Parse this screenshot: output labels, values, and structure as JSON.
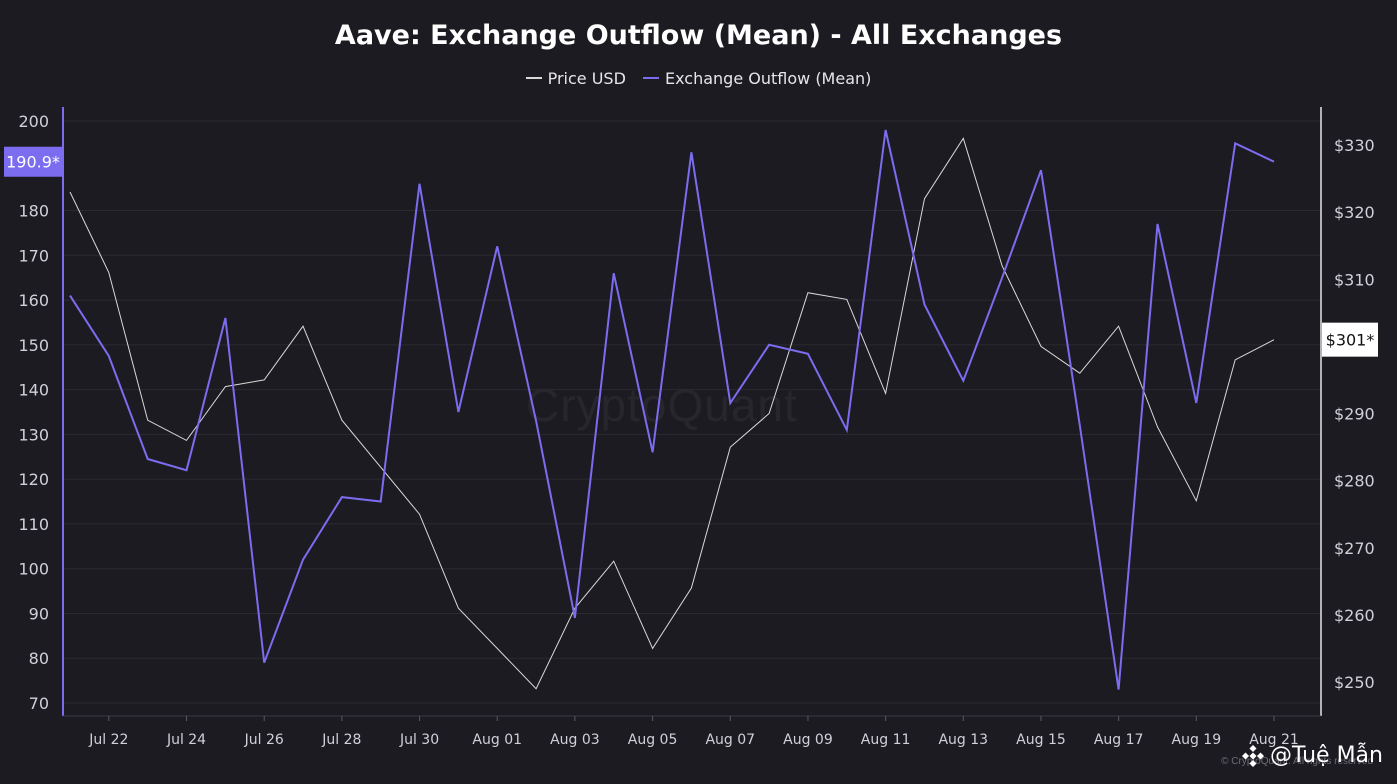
{
  "chart_data": {
    "type": "line",
    "title": "Aave: Exchange Outflow (Mean) - All Exchanges",
    "x": [
      "Jul 21",
      "Jul 22",
      "Jul 23",
      "Jul 24",
      "Jul 25",
      "Jul 26",
      "Jul 27",
      "Jul 28",
      "Jul 29",
      "Jul 30",
      "Jul 31",
      "Aug 01",
      "Aug 02",
      "Aug 03",
      "Aug 04",
      "Aug 05",
      "Aug 06",
      "Aug 07",
      "Aug 08",
      "Aug 09",
      "Aug 10",
      "Aug 11",
      "Aug 12",
      "Aug 13",
      "Aug 14",
      "Aug 15",
      "Aug 16",
      "Aug 17",
      "Aug 18",
      "Aug 19",
      "Aug 20",
      "Aug 21"
    ],
    "x_tick_labels": [
      "Jul 22",
      "Jul 24",
      "Jul 26",
      "Jul 28",
      "Jul 30",
      "Aug 01",
      "Aug 03",
      "Aug 05",
      "Aug 07",
      "Aug 09",
      "Aug 11",
      "Aug 13",
      "Aug 15",
      "Aug 17",
      "Aug 19",
      "Aug 21"
    ],
    "series": [
      {
        "name": "Price USD",
        "axis": "right",
        "color": "#d9d9d9",
        "values": [
          323,
          311,
          289,
          286,
          294,
          295,
          303,
          289,
          282,
          275,
          261,
          255,
          249,
          261,
          268,
          255,
          264,
          285,
          290,
          308,
          307,
          293,
          322,
          331,
          312,
          300,
          296,
          303,
          288,
          277,
          298,
          301
        ]
      },
      {
        "name": "Exchange Outflow (Mean)",
        "axis": "left",
        "color": "#7b6cf0",
        "values": [
          161,
          147.5,
          124.5,
          122,
          156,
          79,
          102,
          116,
          115,
          186,
          135,
          172,
          133,
          89,
          166,
          126,
          193,
          137,
          150,
          148,
          131,
          198,
          159,
          142,
          165,
          189,
          132,
          73,
          177,
          137,
          195,
          190.9
        ]
      }
    ],
    "left_axis": {
      "ylim": [
        66,
        208
      ],
      "ticks": [
        70,
        80,
        90,
        100,
        110,
        120,
        130,
        140,
        150,
        160,
        170,
        180,
        200
      ]
    },
    "right_axis": {
      "ylim": [
        245,
        335
      ],
      "ticks": [
        "$250",
        "$260",
        "$270",
        "$280",
        "$290",
        "$300",
        "$310",
        "$320",
        "$330"
      ]
    },
    "left_marker": "190.9*",
    "right_marker": "$301*",
    "grid": true
  },
  "watermark": "CryptoQuant",
  "copyright": "© CryptoQuant. All rights reserved",
  "credit": "@Tuệ Mẫn",
  "colors": {
    "background": "#1c1b21",
    "outflow": "#7b6cf0",
    "price": "#d9d9d9",
    "grid": "#2b2a31",
    "left_marker_bg": "#7b6cf0",
    "right_marker_bg": "#ffffff"
  }
}
